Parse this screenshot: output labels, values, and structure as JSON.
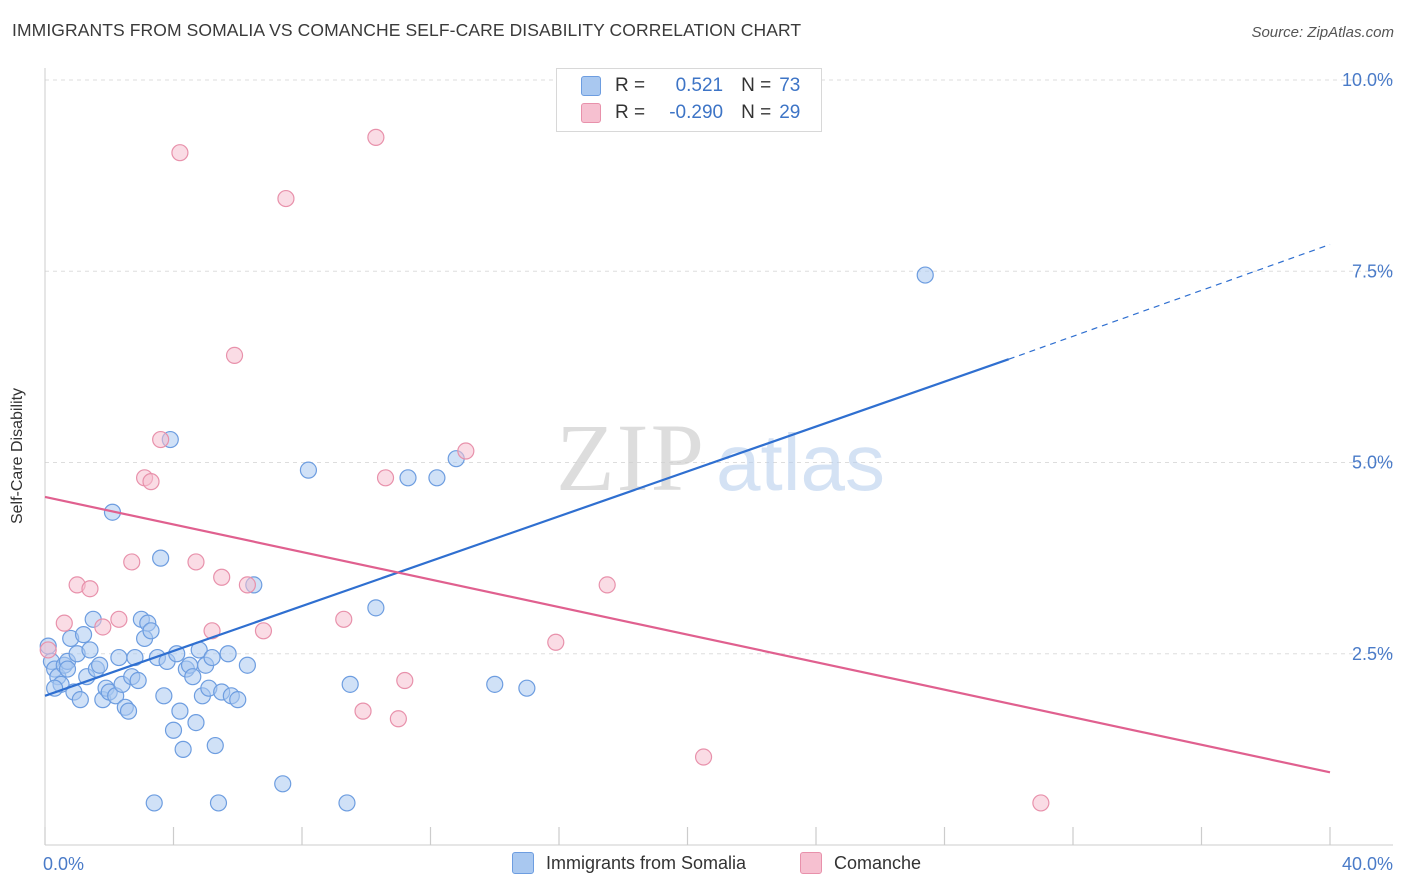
{
  "title": "IMMIGRANTS FROM SOMALIA VS COMANCHE SELF-CARE DISABILITY CORRELATION CHART",
  "source": "Source: ZipAtlas.com",
  "watermark": {
    "zip": "ZIP",
    "atlas": "atlas"
  },
  "colors": {
    "blue_fill": "#a9c8f0",
    "blue_stroke": "#6d9de0",
    "blue_line": "#2f6fd0",
    "pink_fill": "#f6c0d0",
    "pink_stroke": "#e891ab",
    "pink_line": "#e0608f",
    "tick_label": "#4a7bc8",
    "grid": "#dddddd"
  },
  "legend": {
    "rows": [
      {
        "r_label": "R =",
        "r_value": "0.521",
        "n_label": "N =",
        "n_value": "73"
      },
      {
        "r_label": "R =",
        "r_value": "-0.290",
        "n_label": "N =",
        "n_value": "29"
      }
    ]
  },
  "bottom_legend": [
    "Immigrants from Somalia",
    "Comanche"
  ],
  "chart_data": {
    "type": "scatter",
    "xlabel": "",
    "ylabel": "Self-Care Disability",
    "xlim": [
      0,
      40
    ],
    "ylim": [
      0,
      10
    ],
    "x_tick_labels": [
      "0.0%",
      "40.0%"
    ],
    "y_ticks": [
      2.5,
      5.0,
      7.5,
      10.0
    ],
    "y_tick_labels": [
      "2.5%",
      "5.0%",
      "7.5%",
      "10.0%"
    ],
    "grid": "horizontal dashed",
    "series": [
      {
        "name": "Immigrants from Somalia",
        "points": [
          [
            0.1,
            2.6
          ],
          [
            0.2,
            2.4
          ],
          [
            0.3,
            2.3
          ],
          [
            0.4,
            2.2
          ],
          [
            0.5,
            2.1
          ],
          [
            0.6,
            2.35
          ],
          [
            0.7,
            2.4
          ],
          [
            0.8,
            2.7
          ],
          [
            0.9,
            2.0
          ],
          [
            1.0,
            2.5
          ],
          [
            1.1,
            1.9
          ],
          [
            1.2,
            2.75
          ],
          [
            1.3,
            2.2
          ],
          [
            1.4,
            2.55
          ],
          [
            1.5,
            2.95
          ],
          [
            1.6,
            2.3
          ],
          [
            1.7,
            2.35
          ],
          [
            1.8,
            1.9
          ],
          [
            1.9,
            2.05
          ],
          [
            2.0,
            2.0
          ],
          [
            2.1,
            4.35
          ],
          [
            2.2,
            1.95
          ],
          [
            2.3,
            2.45
          ],
          [
            2.4,
            2.1
          ],
          [
            2.5,
            1.8
          ],
          [
            2.6,
            1.75
          ],
          [
            2.7,
            2.2
          ],
          [
            2.8,
            2.45
          ],
          [
            2.9,
            2.15
          ],
          [
            3.0,
            2.95
          ],
          [
            3.1,
            2.7
          ],
          [
            3.2,
            2.9
          ],
          [
            3.3,
            2.8
          ],
          [
            3.4,
            0.55
          ],
          [
            3.5,
            2.45
          ],
          [
            3.6,
            3.75
          ],
          [
            3.7,
            1.95
          ],
          [
            3.8,
            2.4
          ],
          [
            3.9,
            5.3
          ],
          [
            4.0,
            1.5
          ],
          [
            4.1,
            2.5
          ],
          [
            4.2,
            1.75
          ],
          [
            4.3,
            1.25
          ],
          [
            4.4,
            2.3
          ],
          [
            4.5,
            2.35
          ],
          [
            4.6,
            2.2
          ],
          [
            4.7,
            1.6
          ],
          [
            4.8,
            2.55
          ],
          [
            4.9,
            1.95
          ],
          [
            5.0,
            2.35
          ],
          [
            5.1,
            2.05
          ],
          [
            5.2,
            2.45
          ],
          [
            5.3,
            1.3
          ],
          [
            5.4,
            0.55
          ],
          [
            5.5,
            2.0
          ],
          [
            5.7,
            2.5
          ],
          [
            5.8,
            1.95
          ],
          [
            6.0,
            1.9
          ],
          [
            6.3,
            2.35
          ],
          [
            6.5,
            3.4
          ],
          [
            7.4,
            0.8
          ],
          [
            8.2,
            4.9
          ],
          [
            9.4,
            0.55
          ],
          [
            9.5,
            2.1
          ],
          [
            10.3,
            3.1
          ],
          [
            11.3,
            4.8
          ],
          [
            12.2,
            4.8
          ],
          [
            12.8,
            5.05
          ],
          [
            14.0,
            2.1
          ],
          [
            15.0,
            2.05
          ],
          [
            27.4,
            7.45
          ],
          [
            0.3,
            2.05
          ],
          [
            0.7,
            2.3
          ]
        ]
      },
      {
        "name": "Comanche",
        "points": [
          [
            0.1,
            2.55
          ],
          [
            0.6,
            2.9
          ],
          [
            1.0,
            3.4
          ],
          [
            1.4,
            3.35
          ],
          [
            1.8,
            2.85
          ],
          [
            2.3,
            2.95
          ],
          [
            2.7,
            3.7
          ],
          [
            3.1,
            4.8
          ],
          [
            3.3,
            4.75
          ],
          [
            3.6,
            5.3
          ],
          [
            4.2,
            9.05
          ],
          [
            4.7,
            3.7
          ],
          [
            5.2,
            2.8
          ],
          [
            5.5,
            3.5
          ],
          [
            5.9,
            6.4
          ],
          [
            6.3,
            3.4
          ],
          [
            6.8,
            2.8
          ],
          [
            7.5,
            8.45
          ],
          [
            9.3,
            2.95
          ],
          [
            9.9,
            1.75
          ],
          [
            10.3,
            9.25
          ],
          [
            10.6,
            4.8
          ],
          [
            11.0,
            1.65
          ],
          [
            11.2,
            2.15
          ],
          [
            13.1,
            5.15
          ],
          [
            15.9,
            2.65
          ],
          [
            17.5,
            3.4
          ],
          [
            20.5,
            1.15
          ],
          [
            31.0,
            0.55
          ]
        ]
      }
    ],
    "trend_lines": [
      {
        "series": "Immigrants from Somalia",
        "solid": [
          [
            0,
            1.95
          ],
          [
            30,
            6.35
          ]
        ],
        "dashed": [
          [
            30,
            6.35
          ],
          [
            40,
            7.85
          ]
        ]
      },
      {
        "series": "Comanche",
        "solid": [
          [
            0,
            4.55
          ],
          [
            40,
            0.95
          ]
        ]
      }
    ]
  }
}
